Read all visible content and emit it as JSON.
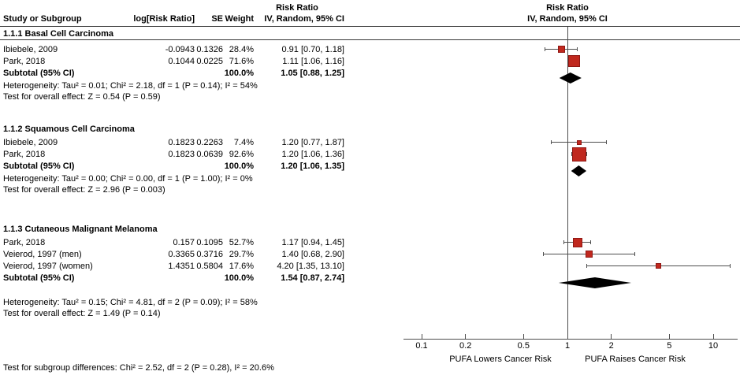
{
  "title_columns": {
    "study": "Study or Subgroup",
    "log_rr": "log[Risk Ratio]",
    "se": "SE",
    "weight": "Weight",
    "effect": "IV, Random, 95% CI",
    "effect_title": "Risk Ratio"
  },
  "plot_header": {
    "line1": "Risk Ratio",
    "line2": "IV, Random, 95% CI"
  },
  "colors": {
    "square_fill": "#c0281e",
    "square_border": "#8f1713",
    "diamond": "#000000",
    "line": "#4d4d4d",
    "rule": "#383838",
    "text": "#000000"
  },
  "chart_data": {
    "type": "forest",
    "effect_measure": "Risk Ratio",
    "model": "IV, Random, 95% CI",
    "x_scale": "log",
    "x_ticks": [
      0.1,
      0.2,
      0.5,
      1,
      2,
      5,
      10
    ],
    "x_left_label": "PUFA Lowers Cancer Risk",
    "x_right_label": "PUFA Raises Cancer Risk",
    "subgroups": [
      {
        "name": "1.1.1 Basal Cell Carcinoma",
        "studies": [
          {
            "study": "Ibiebele, 2009",
            "log_rr": "-0.0943",
            "se": "0.1326",
            "weight": "28.4%",
            "effect": "0.91 [0.70, 1.18]",
            "rr": 0.91,
            "ci_low": 0.7,
            "ci_high": 1.18
          },
          {
            "study": "Park, 2018",
            "log_rr": "0.1044",
            "se": "0.0225",
            "weight": "71.6%",
            "effect": "1.11 [1.06, 1.16]",
            "rr": 1.11,
            "ci_low": 1.06,
            "ci_high": 1.16
          }
        ],
        "subtotal": {
          "study": "Subtotal (95% CI)",
          "weight": "100.0%",
          "effect": "1.05 [0.88, 1.25]",
          "rr": 1.05,
          "ci_low": 0.88,
          "ci_high": 1.25
        },
        "heterogeneity": "Heterogeneity: Tau² = 0.01; Chi² = 2.18, df = 1 (P = 0.14); I² = 54%",
        "overall_effect": "Test for overall effect: Z = 0.54 (P = 0.59)"
      },
      {
        "name": "1.1.2 Squamous Cell Carcinoma",
        "studies": [
          {
            "study": "Ibiebele, 2009",
            "log_rr": "0.1823",
            "se": "0.2263",
            "weight": "7.4%",
            "effect": "1.20 [0.77, 1.87]",
            "rr": 1.2,
            "ci_low": 0.77,
            "ci_high": 1.87
          },
          {
            "study": "Park, 2018",
            "log_rr": "0.1823",
            "se": "0.0639",
            "weight": "92.6%",
            "effect": "1.20 [1.06, 1.36]",
            "rr": 1.2,
            "ci_low": 1.06,
            "ci_high": 1.36
          }
        ],
        "subtotal": {
          "study": "Subtotal (95% CI)",
          "weight": "100.0%",
          "effect": "1.20 [1.06, 1.35]",
          "rr": 1.2,
          "ci_low": 1.06,
          "ci_high": 1.35
        },
        "heterogeneity": "Heterogeneity: Tau² = 0.00; Chi² = 0.00, df = 1 (P = 1.00); I² = 0%",
        "overall_effect": "Test for overall effect: Z = 2.96 (P = 0.003)"
      },
      {
        "name": "1.1.3 Cutaneous Malignant Melanoma",
        "studies": [
          {
            "study": "Park, 2018",
            "log_rr": "0.157",
            "se": "0.1095",
            "weight": "52.7%",
            "effect": "1.17 [0.94, 1.45]",
            "rr": 1.17,
            "ci_low": 0.94,
            "ci_high": 1.45
          },
          {
            "study": "Veierod, 1997 (men)",
            "log_rr": "0.3365",
            "se": "0.3716",
            "weight": "29.7%",
            "effect": "1.40 [0.68, 2.90]",
            "rr": 1.4,
            "ci_low": 0.68,
            "ci_high": 2.9
          },
          {
            "study": "Veierod, 1997 (women)",
            "log_rr": "1.4351",
            "se": "0.5804",
            "weight": "17.6%",
            "effect": "4.20 [1.35, 13.10]",
            "rr": 4.2,
            "ci_low": 1.35,
            "ci_high": 13.1
          }
        ],
        "subtotal": {
          "study": "Subtotal (95% CI)",
          "weight": "100.0%",
          "effect": "1.54 [0.87, 2.74]",
          "rr": 1.54,
          "ci_low": 0.87,
          "ci_high": 2.74
        },
        "heterogeneity": "Heterogeneity: Tau² = 0.15; Chi² = 4.81, df = 2 (P = 0.09); I² = 58%",
        "overall_effect": "Test for overall effect: Z = 1.49 (P = 0.14)"
      }
    ],
    "footer": "Test for subgroup differences: Chi² = 2.52, df = 2 (P = 0.28), I² = 20.6%"
  }
}
